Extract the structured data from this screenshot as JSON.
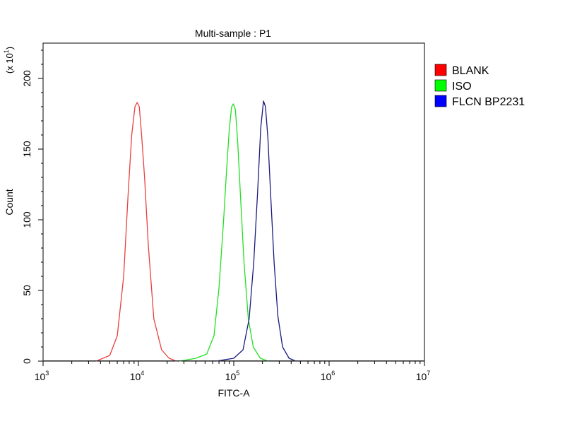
{
  "chart_data": {
    "type": "line",
    "title": "Multi-sample : P1",
    "xlabel": "FITC-A",
    "ylabel": "Count",
    "y_multiplier": {
      "base": "(x 10",
      "exp": "1",
      "close": ")"
    },
    "x_scale": "log",
    "xlim": [
      1000,
      10000000
    ],
    "ylim": [
      0,
      225
    ],
    "x_ticks": [
      {
        "value": 1000,
        "base": "10",
        "exp": "3"
      },
      {
        "value": 10000,
        "base": "10",
        "exp": "4"
      },
      {
        "value": 100000,
        "base": "10",
        "exp": "5"
      },
      {
        "value": 1000000,
        "base": "10",
        "exp": "6"
      },
      {
        "value": 10000000,
        "base": "10",
        "exp": "7"
      }
    ],
    "y_ticks": [
      0,
      50,
      100,
      150,
      200
    ],
    "grid": false,
    "legend_position": "right",
    "series": [
      {
        "name": "BLANK",
        "color": "#e8403f",
        "swatch": "#ff0000",
        "points": [
          [
            3600,
            0
          ],
          [
            5000,
            4
          ],
          [
            6000,
            18
          ],
          [
            7000,
            60
          ],
          [
            7800,
            118
          ],
          [
            8500,
            160
          ],
          [
            9200,
            180
          ],
          [
            9700,
            183
          ],
          [
            10200,
            180
          ],
          [
            10800,
            160
          ],
          [
            11600,
            130
          ],
          [
            12700,
            82
          ],
          [
            14500,
            30
          ],
          [
            17500,
            8
          ],
          [
            21000,
            2
          ],
          [
            25000,
            0
          ]
        ]
      },
      {
        "name": "ISO",
        "color": "#22e022",
        "swatch": "#00ff00",
        "points": [
          [
            27000,
            0
          ],
          [
            40000,
            2
          ],
          [
            52000,
            5
          ],
          [
            62000,
            18
          ],
          [
            70000,
            52
          ],
          [
            78000,
            98
          ],
          [
            84000,
            135
          ],
          [
            90000,
            165
          ],
          [
            95000,
            180
          ],
          [
            99000,
            182
          ],
          [
            104000,
            178
          ],
          [
            110000,
            155
          ],
          [
            118000,
            115
          ],
          [
            128000,
            70
          ],
          [
            142000,
            30
          ],
          [
            160000,
            10
          ],
          [
            190000,
            2
          ],
          [
            230000,
            0
          ]
        ]
      },
      {
        "name": "FLCN BP2231",
        "color": "#1a1a80",
        "swatch": "#0000ff",
        "points": [
          [
            65000,
            0
          ],
          [
            100000,
            2
          ],
          [
            125000,
            8
          ],
          [
            145000,
            30
          ],
          [
            162000,
            70
          ],
          [
            178000,
            120
          ],
          [
            192000,
            165
          ],
          [
            205000,
            184
          ],
          [
            215000,
            180
          ],
          [
            228000,
            158
          ],
          [
            245000,
            115
          ],
          [
            265000,
            70
          ],
          [
            290000,
            32
          ],
          [
            325000,
            10
          ],
          [
            380000,
            2
          ],
          [
            450000,
            0
          ]
        ]
      }
    ]
  }
}
